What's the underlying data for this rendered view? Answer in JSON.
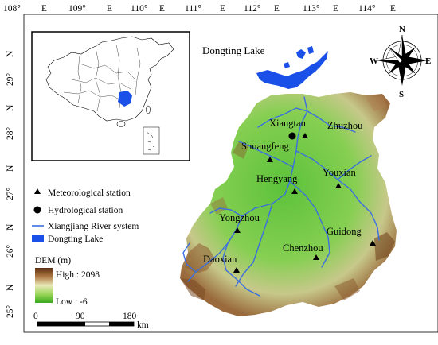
{
  "top_ticks": [
    {
      "deg": "108°",
      "dir": "E"
    },
    {
      "deg": "109°",
      "dir": "E"
    },
    {
      "deg": "110°",
      "dir": "E"
    },
    {
      "deg": "111°",
      "dir": "E"
    },
    {
      "deg": "112°",
      "dir": "E"
    },
    {
      "deg": "113°",
      "dir": "E"
    },
    {
      "deg": "114°",
      "dir": "E"
    }
  ],
  "left_ticks": [
    {
      "deg": "29°",
      "dir": "N"
    },
    {
      "deg": "28°",
      "dir": "N"
    },
    {
      "deg": "27°",
      "dir": "N"
    },
    {
      "deg": "26°",
      "dir": "N"
    },
    {
      "deg": "25°",
      "dir": "N"
    }
  ],
  "lake_label": "Dongting Lake",
  "compass": {
    "n": "N",
    "s": "S",
    "e": "E",
    "w": "W"
  },
  "stations": [
    {
      "name": "Zhuzhou",
      "type": "meteorological"
    },
    {
      "name": "Shuangfeng",
      "type": "meteorological"
    },
    {
      "name": "Hengyang",
      "type": "meteorological"
    },
    {
      "name": "Youxian",
      "type": "meteorological"
    },
    {
      "name": "Yongzhou",
      "type": "meteorological"
    },
    {
      "name": "Guidong",
      "type": "meteorological"
    },
    {
      "name": "Chenzhou",
      "type": "meteorological"
    },
    {
      "name": "Daoxian",
      "type": "meteorological"
    },
    {
      "name": "Xiangtan",
      "type": "hydrological"
    }
  ],
  "legend": {
    "items": [
      "Meteorological station",
      "Hydrological station",
      "Xiangjiang River system",
      "Dongting Lake"
    ],
    "dem_title": "DEM (m)",
    "dem_high": "High : 2098",
    "dem_low": "Low : -6"
  },
  "scalebar": {
    "labels": [
      "0",
      "90",
      "180"
    ],
    "unit": "km"
  },
  "colors": {
    "lake": "#1a4fe8",
    "river": "#3b6fe0",
    "dem_low": "#43b324",
    "dem_mid": "#e6e6a0",
    "dem_high": "#8a4e22",
    "china_highlight": "#1a4fe8"
  }
}
